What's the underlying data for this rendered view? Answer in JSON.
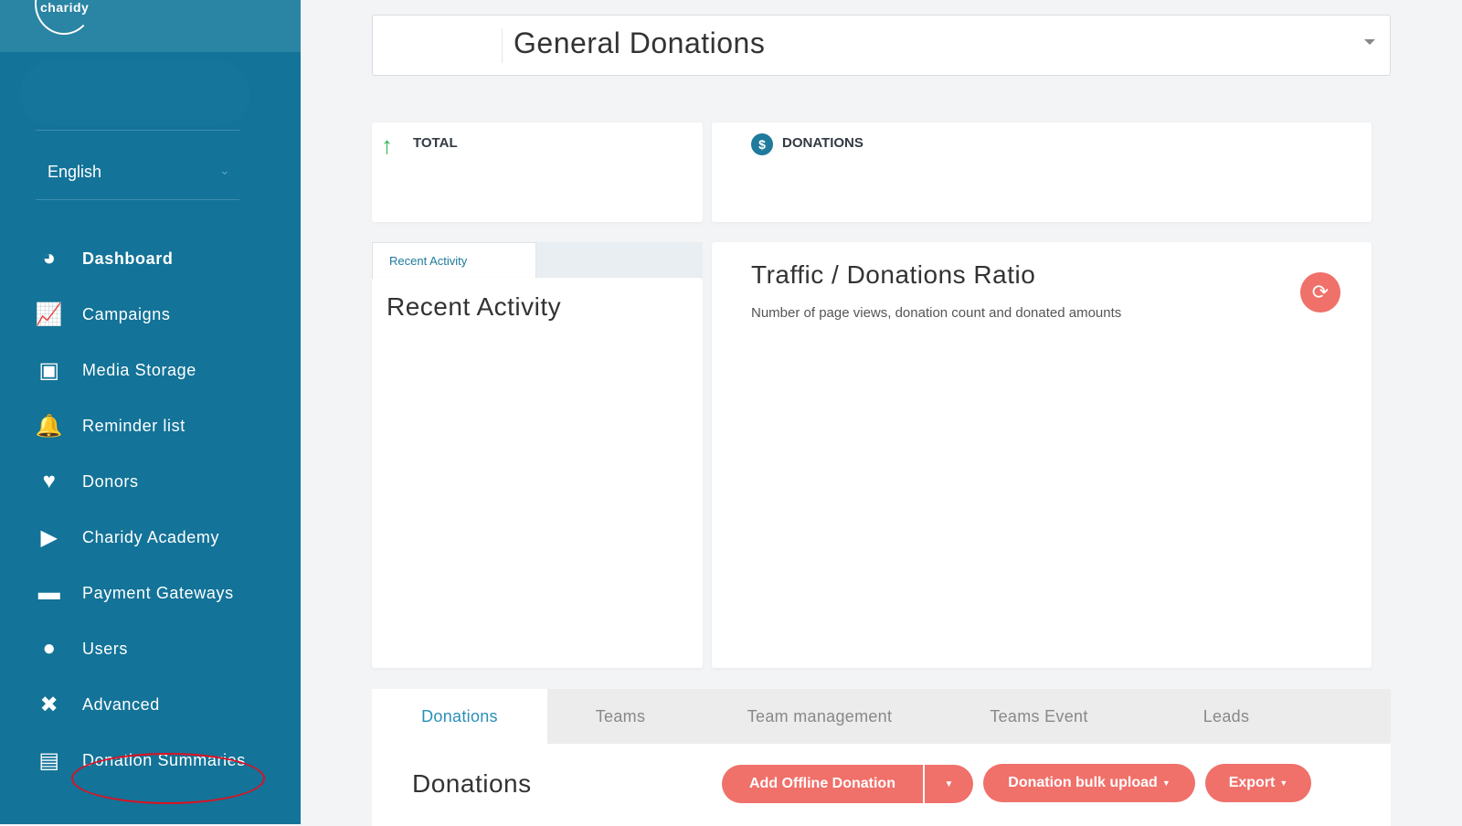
{
  "brand": {
    "logo_text": "charidy"
  },
  "sidebar": {
    "language": "English",
    "items": [
      {
        "label": "Dashboard",
        "icon": "speedometer-icon",
        "active": true
      },
      {
        "label": "Campaigns",
        "icon": "campaign-chart-icon"
      },
      {
        "label": "Media Storage",
        "icon": "image-icon"
      },
      {
        "label": "Reminder list",
        "icon": "bell-icon"
      },
      {
        "label": "Donors",
        "icon": "donor-heart-icon"
      },
      {
        "label": "Charidy Academy",
        "icon": "academy-video-icon"
      },
      {
        "label": "Payment Gateways",
        "icon": "credit-card-icon"
      },
      {
        "label": "Users",
        "icon": "user-icon"
      },
      {
        "label": "Advanced",
        "icon": "tools-icon"
      },
      {
        "label": "Donation Summaries",
        "icon": "document-icon",
        "highlighted": true
      }
    ]
  },
  "campaign_select": {
    "value": "General Donations"
  },
  "stats": {
    "total_label": "TOTAL",
    "donations_label": "DONATIONS"
  },
  "recent_activity": {
    "tab": "Recent Activity",
    "title": "Recent Activity"
  },
  "traffic": {
    "title": "Traffic / Donations Ratio",
    "subtitle": "Number of page views, donation count and donated amounts"
  },
  "tabs": [
    "Donations",
    "Teams",
    "Team management",
    "Teams Event",
    "Leads"
  ],
  "donations": {
    "title": "Donations",
    "add_offline": "Add Offline Donation",
    "bulk_upload": "Donation bulk upload",
    "export": "Export"
  },
  "colors": {
    "sidebar": "#137398",
    "accent": "#f0706a",
    "highlight_circle": "#e01020"
  }
}
